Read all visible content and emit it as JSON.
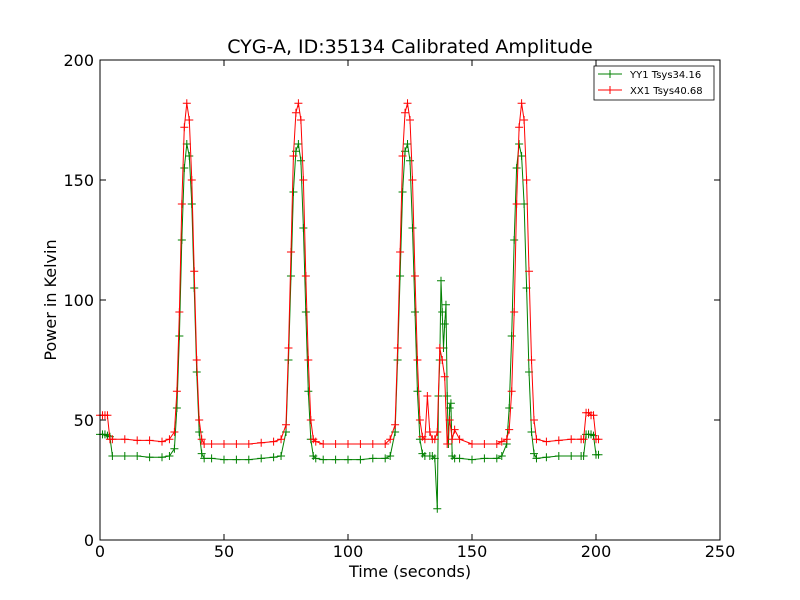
{
  "chart_data": {
    "type": "line",
    "title": "CYG-A, ID:35134 Calibrated Amplitude",
    "xlabel": "Time (seconds)",
    "ylabel": "Power in Kelvin",
    "xlim": [
      0,
      250
    ],
    "ylim": [
      0,
      200
    ],
    "xticks": [
      0,
      50,
      100,
      150,
      200,
      250
    ],
    "yticks": [
      0,
      50,
      100,
      150,
      200
    ],
    "xtick_labels": [
      "0",
      "50",
      "100",
      "150",
      "200",
      "250"
    ],
    "ytick_labels": [
      "0",
      "50",
      "100",
      "150",
      "200"
    ],
    "grid": false,
    "legend_position": "top-right",
    "marker": "+",
    "series": [
      {
        "name": "YY1 Tsys34.16",
        "color": "#008000",
        "x": [
          0,
          1,
          2,
          3,
          4,
          5,
          10,
          15,
          20,
          25,
          28,
          30,
          31,
          32,
          33,
          34,
          35,
          36,
          37,
          38,
          39,
          40,
          41,
          42,
          45,
          50,
          55,
          60,
          65,
          70,
          73,
          75,
          76,
          77,
          78,
          79,
          80,
          81,
          82,
          83,
          84,
          85,
          86,
          87,
          90,
          95,
          100,
          105,
          110,
          115,
          117,
          119,
          120,
          121,
          122,
          123,
          124,
          125,
          126,
          127,
          128,
          129,
          130,
          131,
          133,
          134,
          135,
          136,
          136.5,
          137,
          137.5,
          138,
          138.5,
          139,
          139.5,
          140,
          140.5,
          141,
          141.5,
          142,
          143,
          145,
          150,
          155,
          160,
          162,
          164,
          165,
          166,
          167,
          168,
          169,
          170,
          171,
          172,
          173,
          174,
          175,
          176,
          180,
          185,
          190,
          194,
          195,
          196,
          197,
          198,
          199,
          200,
          201
        ],
        "y": [
          44,
          44,
          44,
          43.5,
          43,
          35,
          35,
          35,
          34.5,
          34.5,
          35,
          38,
          55,
          85,
          125,
          155,
          165,
          160,
          140,
          105,
          70,
          45,
          36,
          34,
          34,
          33.5,
          33.5,
          33.5,
          34,
          34.5,
          35,
          45,
          75,
          110,
          145,
          162,
          165,
          158,
          130,
          95,
          62,
          42,
          35,
          34,
          33.5,
          33.5,
          33.5,
          33.5,
          34,
          34,
          35,
          45,
          75,
          110,
          145,
          162,
          165,
          158,
          130,
          95,
          62,
          42,
          36,
          35,
          35,
          35,
          34,
          13,
          60,
          75,
          108,
          95,
          80,
          90,
          98,
          60,
          40,
          55,
          57,
          35,
          34,
          34,
          33.5,
          34,
          34,
          35,
          40,
          55,
          85,
          125,
          155,
          165,
          160,
          140,
          105,
          70,
          45,
          36,
          34,
          34.5,
          35,
          35,
          35,
          35,
          44,
          44,
          44,
          43.5,
          35.5,
          35.5
        ]
      },
      {
        "name": "XX1 Tsys40.68",
        "color": "#ff0000",
        "x": [
          0,
          1,
          2,
          3,
          4,
          5,
          10,
          15,
          20,
          25,
          28,
          30,
          31,
          32,
          33,
          34,
          35,
          36,
          37,
          38,
          39,
          40,
          41,
          42,
          45,
          50,
          55,
          60,
          65,
          70,
          73,
          75,
          76,
          77,
          78,
          79,
          80,
          81,
          82,
          83,
          84,
          85,
          86,
          87,
          90,
          95,
          100,
          105,
          110,
          115,
          117,
          119,
          120,
          121,
          122,
          123,
          124,
          125,
          126,
          127,
          128,
          129,
          130,
          131,
          132,
          133,
          134,
          135,
          136,
          137,
          138,
          139,
          140,
          141,
          142,
          143,
          145,
          150,
          155,
          160,
          162,
          164,
          165,
          166,
          167,
          168,
          169,
          170,
          171,
          172,
          173,
          174,
          175,
          176,
          180,
          185,
          190,
          194,
          195,
          196,
          197,
          198,
          199,
          200,
          201
        ],
        "y": [
          52,
          52,
          52,
          52,
          42,
          42,
          42,
          41.5,
          41.5,
          41,
          42,
          45,
          62,
          95,
          140,
          172,
          182,
          175,
          150,
          112,
          75,
          50,
          42,
          40,
          40,
          40,
          40,
          40,
          40.5,
          41,
          42,
          48,
          80,
          120,
          160,
          178,
          182,
          175,
          150,
          110,
          75,
          50,
          42,
          41,
          40,
          40,
          40,
          40,
          40,
          40,
          42,
          48,
          80,
          120,
          160,
          178,
          182,
          175,
          150,
          110,
          75,
          50,
          43,
          42,
          60,
          45,
          42,
          42,
          45,
          80,
          75,
          68,
          40,
          50,
          42,
          46,
          42,
          40,
          40,
          40,
          41,
          42,
          46,
          62,
          95,
          140,
          172,
          182,
          175,
          150,
          112,
          75,
          50,
          42,
          41,
          41.5,
          42,
          42,
          42,
          53,
          53,
          52,
          52,
          42,
          42
        ]
      }
    ]
  }
}
